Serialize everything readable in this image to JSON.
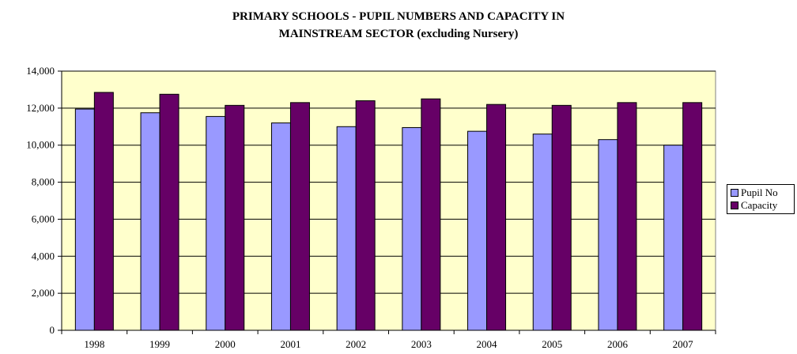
{
  "chart_data": {
    "type": "bar",
    "title": "PRIMARY SCHOOLS - PUPIL NUMBERS AND CAPACITY IN",
    "subtitle": "MAINSTREAM SECTOR (excluding Nursery)",
    "categories": [
      "1998",
      "1999",
      "2000",
      "2001",
      "2002",
      "2003",
      "2004",
      "2005",
      "2006",
      "2007"
    ],
    "series": [
      {
        "name": "Pupil No",
        "color": "#9999ff",
        "values": [
          11950,
          11750,
          11550,
          11200,
          11000,
          10950,
          10750,
          10600,
          10300,
          10000
        ]
      },
      {
        "name": "Capacity",
        "color": "#660066",
        "values": [
          12850,
          12750,
          12150,
          12300,
          12400,
          12500,
          12200,
          12150,
          12300,
          12300
        ]
      }
    ],
    "ylim": [
      0,
      14000
    ],
    "yticks": [
      0,
      2000,
      4000,
      6000,
      8000,
      10000,
      12000,
      14000
    ],
    "ytick_labels": [
      "0",
      "2,000",
      "4,000",
      "6,000",
      "8,000",
      "10,000",
      "12,000",
      "14,000"
    ],
    "grid": true,
    "plot_background": "#ffffcc",
    "legend_position": "right"
  }
}
